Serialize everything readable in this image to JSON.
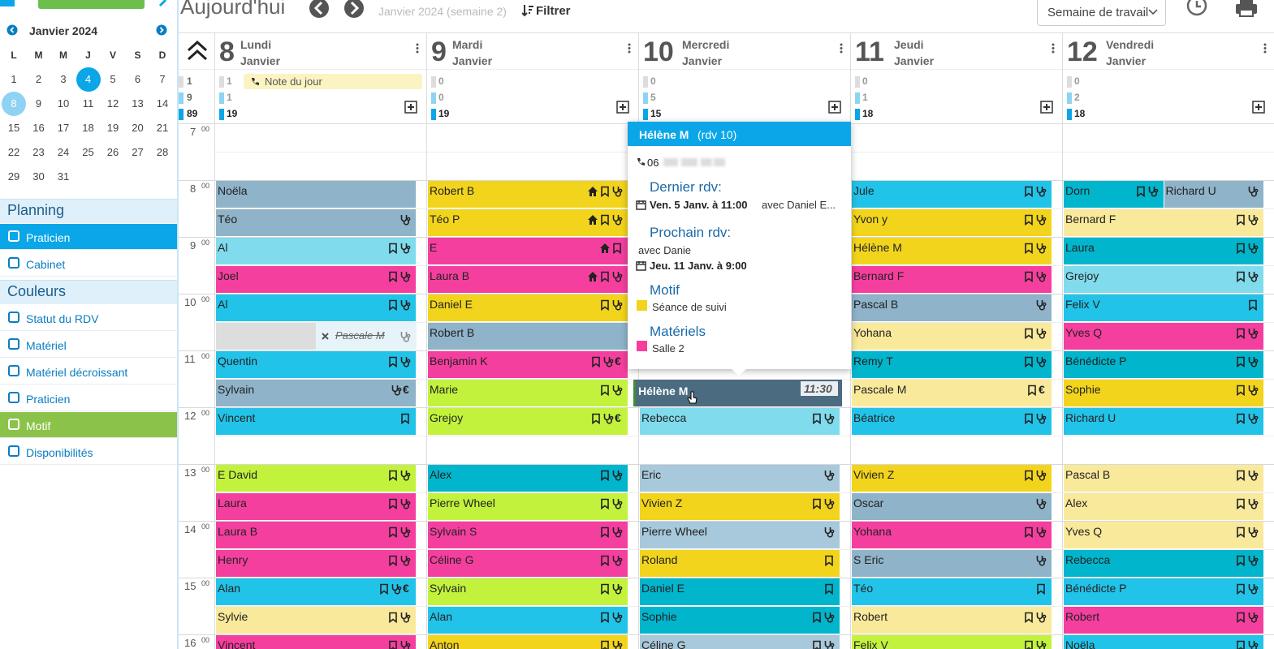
{
  "header": {
    "title": "Aujourd'hui",
    "period": "Janvier 2024 (semaine 2)",
    "filter": "Filtrer",
    "view": "Semaine de travail"
  },
  "mini_calendar": {
    "month": "Janvier 2024",
    "weekdays": [
      "L",
      "M",
      "M",
      "J",
      "V",
      "S",
      "D"
    ],
    "weeks": [
      [
        1,
        2,
        3,
        4,
        5,
        6,
        7
      ],
      [
        8,
        9,
        10,
        11,
        12,
        13,
        14
      ],
      [
        15,
        16,
        17,
        18,
        19,
        20,
        21
      ],
      [
        22,
        23,
        24,
        25,
        26,
        27,
        28
      ],
      [
        29,
        30,
        31
      ]
    ],
    "today": 4,
    "selected": 8
  },
  "sidebar": {
    "sections": [
      {
        "title": "Planning",
        "items": [
          {
            "label": "Praticien",
            "active": "#0aa6e8"
          },
          {
            "label": "Cabinet"
          }
        ]
      },
      {
        "title": "Couleurs",
        "items": [
          {
            "label": "Statut du RDV"
          },
          {
            "label": "Matériel"
          },
          {
            "label": "Matériel décroissant"
          },
          {
            "label": "Praticien"
          },
          {
            "label": "Motif",
            "active": "#8bc34a"
          },
          {
            "label": "Disponibilités"
          }
        ]
      }
    ]
  },
  "calendar": {
    "totals": [
      1,
      9,
      89
    ],
    "hours": [
      7,
      8,
      9,
      10,
      11,
      12,
      13,
      14,
      15,
      16
    ],
    "minutes": "00",
    "days": [
      {
        "number": 8,
        "name": "Lundi",
        "month": "Janvier",
        "counts": [
          1,
          1,
          19
        ],
        "note": "Note du jour",
        "appts": [
          {
            "name": "Noëla",
            "color": "#8fb3c9",
            "icons": ""
          },
          {
            "name": "Téo",
            "color": "#8fb3c9",
            "icons": "s"
          },
          {
            "name": "Al",
            "color": "#80dbec",
            "icons": "bs"
          },
          {
            "name": "Joel",
            "color": "#f53f9f",
            "icons": "bs"
          },
          {
            "name": "Al",
            "color": "#22c3e8",
            "icons": "bs"
          },
          {
            "name": "Pascale M",
            "color": "#e6f4fa",
            "icons": "s",
            "cancelled": true
          },
          {
            "name": "Quentin",
            "color": "#22c3e8",
            "icons": "bs"
          },
          {
            "name": "Sylvain",
            "color": "#8fb3c9",
            "icons": "s",
            "extra": "€"
          },
          {
            "name": "Vincent",
            "color": "#22c3e8",
            "icons": "b"
          },
          null,
          {
            "name": "E David",
            "color": "#c3f23c",
            "icons": "bs"
          },
          {
            "name": "Laura",
            "color": "#f53f9f",
            "icons": "bs"
          },
          {
            "name": "Laura B",
            "color": "#f53f9f",
            "icons": "bs"
          },
          {
            "name": "Henry",
            "color": "#f53f9f",
            "icons": "bs"
          },
          {
            "name": "Alan",
            "color": "#22c3e8",
            "icons": "bs",
            "extra": "€"
          },
          {
            "name": "Sylvie",
            "color": "#f9e99b",
            "icons": "bs"
          },
          {
            "name": "Vincent",
            "color": "#f53f9f",
            "icons": "bs"
          }
        ]
      },
      {
        "number": 9,
        "name": "Mardi",
        "month": "Janvier",
        "counts": [
          0,
          0,
          19
        ],
        "appts": [
          {
            "name": "Robert B",
            "color": "#f2d41c",
            "icons": "hbs"
          },
          {
            "name": "Téo P",
            "color": "#f2d41c",
            "icons": "hbs"
          },
          {
            "name": "E",
            "color": "#f53f9f",
            "icons": "hb"
          },
          {
            "name": "Laura B",
            "color": "#f53f9f",
            "icons": "hbs"
          },
          {
            "name": "Daniel E",
            "color": "#f2d41c",
            "icons": "bs"
          },
          {
            "name": "Robert B",
            "color": "#8fb3c9",
            "icons": ""
          },
          {
            "name": "Benjamin K",
            "color": "#f53f9f",
            "icons": "bs",
            "extra": "€"
          },
          {
            "name": "Marie",
            "color": "#c3f23c",
            "icons": "bs"
          },
          {
            "name": "Grejoy",
            "color": "#c3f23c",
            "icons": "bs",
            "extra": "€"
          },
          null,
          {
            "name": "Alex",
            "color": "#00b5cc",
            "icons": "bs"
          },
          {
            "name": "Pierre Wheel",
            "color": "#c3f23c",
            "icons": "bs"
          },
          {
            "name": "Sylvain S",
            "color": "#f53f9f",
            "icons": "bs"
          },
          {
            "name": "Céline G",
            "color": "#f53f9f",
            "icons": "bs"
          },
          {
            "name": "Sylvain",
            "color": "#c3f23c",
            "icons": "bs"
          },
          {
            "name": "Alan",
            "color": "#22c3e8",
            "icons": "bs"
          },
          {
            "name": "Anton",
            "color": "#f2d41c",
            "icons": "bs"
          }
        ]
      },
      {
        "number": 10,
        "name": "Mercredi",
        "month": "Janvier",
        "counts": [
          0,
          5,
          15
        ],
        "appts": [
          null,
          null,
          null,
          null,
          null,
          null,
          null,
          {
            "name": "Hélène M",
            "color": "#4a6b80",
            "icons": "",
            "time": "11:30",
            "selected": true
          },
          {
            "name": "Rebecca",
            "color": "#80dbec",
            "icons": "bs"
          },
          null,
          {
            "name": "Eric",
            "color": "#a8c8db",
            "icons": "s"
          },
          {
            "name": "Vivien Z",
            "color": "#f2d41c",
            "icons": "bs"
          },
          {
            "name": "Pierre Wheel",
            "color": "#a8c8db",
            "icons": "s"
          },
          {
            "name": "Roland",
            "color": "#f2d41c",
            "icons": "b"
          },
          {
            "name": "Daniel E",
            "color": "#00b5cc",
            "icons": "b"
          },
          {
            "name": "Sophie",
            "color": "#00b5cc",
            "icons": "bs"
          },
          {
            "name": "Céline G",
            "color": "#a8c8db",
            "icons": "bs"
          }
        ]
      },
      {
        "number": 11,
        "name": "Jeudi",
        "month": "Janvier",
        "counts": [
          0,
          1,
          18
        ],
        "appts": [
          {
            "name": "Jule",
            "color": "#22c3e8",
            "icons": "bs"
          },
          {
            "name": "Yvon y",
            "color": "#f2d41c",
            "icons": "bs"
          },
          {
            "name": "Hélène M",
            "color": "#f2d41c",
            "icons": "bs"
          },
          {
            "name": "Bernard F",
            "color": "#f53f9f",
            "icons": "bs"
          },
          {
            "name": "Pascal B",
            "color": "#8fb3c9",
            "icons": "s"
          },
          {
            "name": "Yohana",
            "color": "#f9e99b",
            "icons": "bs"
          },
          {
            "name": "Remy T",
            "color": "#00b5cc",
            "icons": "bs"
          },
          {
            "name": "Pascale M",
            "color": "#f9e99b",
            "icons": "b",
            "extra": "€"
          },
          {
            "name": "Béatrice",
            "color": "#22c3e8",
            "icons": "bs"
          },
          null,
          {
            "name": "Vivien Z",
            "color": "#f2d41c",
            "icons": "bs"
          },
          {
            "name": "Oscar",
            "color": "#8fb3c9",
            "icons": "s"
          },
          {
            "name": "Yohana",
            "color": "#f53f9f",
            "icons": "bs"
          },
          {
            "name": "S Eric",
            "color": "#8fb3c9",
            "icons": "s"
          },
          {
            "name": "Téo",
            "color": "#22c3e8",
            "icons": "b"
          },
          {
            "name": "Robert",
            "color": "#f9e99b",
            "icons": "bs"
          },
          {
            "name": "Felix V",
            "color": "#c3f23c",
            "icons": "bs"
          }
        ]
      },
      {
        "number": 12,
        "name": "Vendredi",
        "month": "Janvier",
        "counts": [
          0,
          2,
          18
        ],
        "appts": [
          [
            {
              "name": "Dorn",
              "color": "#00b5cc",
              "icons": "bs"
            },
            {
              "name": "Richard U",
              "color": "#8fb3c9",
              "icons": "s"
            }
          ],
          {
            "name": "Bernard F",
            "color": "#f9e99b",
            "icons": "bs"
          },
          {
            "name": "Laura",
            "color": "#00b5cc",
            "icons": "bs"
          },
          {
            "name": "Grejoy",
            "color": "#80dbec",
            "icons": "bs"
          },
          {
            "name": "Felix V",
            "color": "#22c3e8",
            "icons": "b"
          },
          {
            "name": "Yves Q",
            "color": "#f53f9f",
            "icons": "bs"
          },
          {
            "name": "Bénédicte P",
            "color": "#00b5cc",
            "icons": "bs"
          },
          {
            "name": "Sophie",
            "color": "#f2d41c",
            "icons": "bs"
          },
          {
            "name": "Richard U",
            "color": "#22c3e8",
            "icons": "bs"
          },
          null,
          {
            "name": "Pascal B",
            "color": "#f9e99b",
            "icons": "bs"
          },
          {
            "name": "Alex",
            "color": "#f9e99b",
            "icons": "bs"
          },
          {
            "name": "Yves Q",
            "color": "#f9e99b",
            "icons": "bs"
          },
          {
            "name": "Rebecca",
            "color": "#00b5cc",
            "icons": "bs"
          },
          {
            "name": "Bénédicte P",
            "color": "#22c3e8",
            "icons": "bs"
          },
          {
            "name": "Robert",
            "color": "#f53f9f",
            "icons": "bs"
          },
          {
            "name": "Noëla",
            "color": "#22c3e8",
            "icons": "bs"
          }
        ]
      }
    ]
  },
  "popup": {
    "name": "Hélène M",
    "ref": "(rdv 10)",
    "phone": "06",
    "last_title": "Dernier rdv:",
    "last_date": "Ven. 5 Janv. à 11:00",
    "last_with": "avec Daniel E...",
    "next_title": "Prochain rdv:",
    "next_with": "avec Danie",
    "next_date": "Jeu. 11 Janv. à 9:00",
    "motif_title": "Motif",
    "motif": "Séance de suivi",
    "motif_color": "#f2d41c",
    "mat_title": "Matériels",
    "mat": "Salle 2",
    "mat_color": "#f53f9f"
  }
}
